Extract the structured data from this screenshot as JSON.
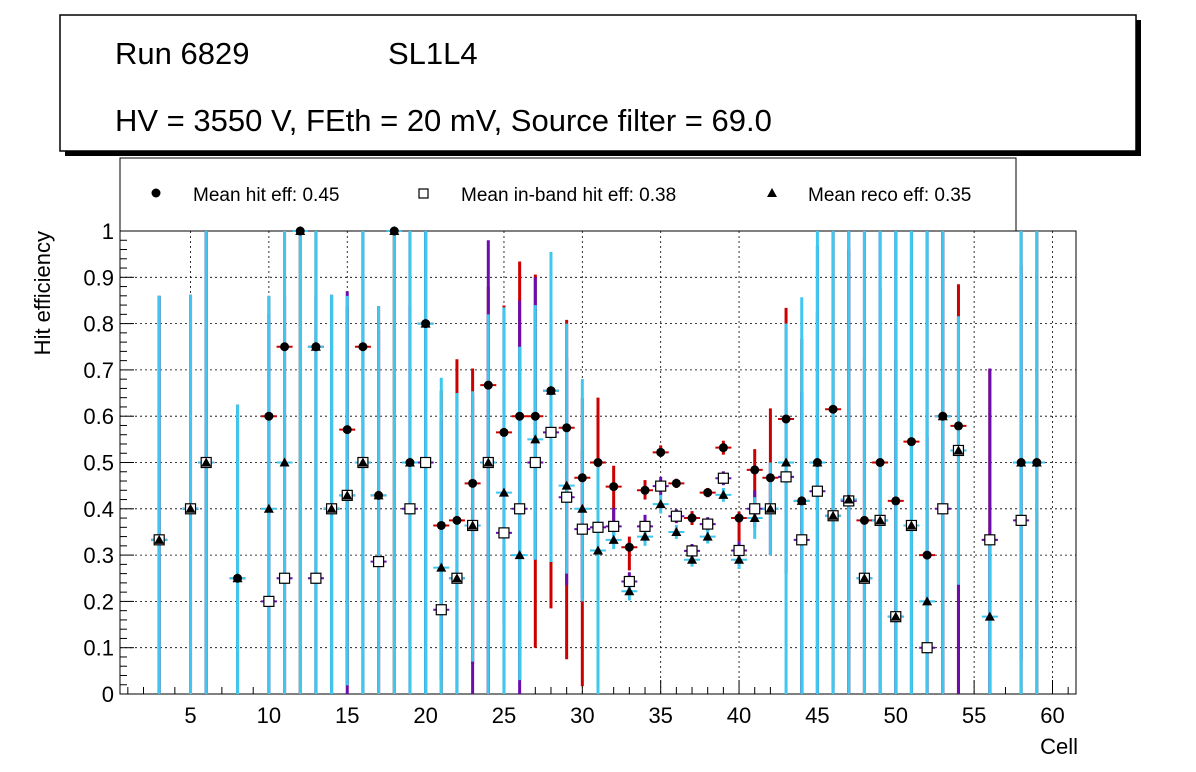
{
  "header": {
    "run": "Run 6829",
    "layer": "SL1L4",
    "settings": "HV = 3550 V, FEth = 20 mV, Source filter = 69.0"
  },
  "legend": {
    "hit": "Mean hit  eff: 0.45",
    "inband": "Mean in-band hit eff: 0.38",
    "reco": "Mean reco eff: 0.35"
  },
  "chart_data": {
    "type": "scatter",
    "xlabel": "Cell",
    "ylabel": "Hit efficiency",
    "xlim": [
      0.5,
      61.5
    ],
    "ylim": [
      0,
      1
    ],
    "xticks": [
      5,
      10,
      15,
      20,
      25,
      30,
      35,
      40,
      45,
      50,
      55,
      60
    ],
    "yticks": [
      0,
      0.1,
      0.2,
      0.3,
      0.4,
      0.5,
      0.6,
      0.7,
      0.8,
      0.9,
      1
    ],
    "grid": true,
    "colors": {
      "hit_err": "#cc0000",
      "inband_err": "#6a0dad",
      "reco_err": "#3ec8f0",
      "marker": "#000000"
    },
    "x": [
      3,
      5,
      6,
      8,
      10,
      11,
      12,
      13,
      14,
      15,
      16,
      17,
      18,
      19,
      20,
      21,
      22,
      23,
      24,
      25,
      26,
      27,
      28,
      29,
      30,
      31,
      32,
      33,
      34,
      35,
      36,
      37,
      38,
      39,
      40,
      41,
      42,
      43,
      44,
      45,
      46,
      47,
      48,
      49,
      50,
      51,
      52,
      53,
      54,
      56,
      58,
      59
    ],
    "series": [
      {
        "name": "Mean hit eff",
        "values": [
          0.333,
          0.4,
          0.5,
          0.25,
          0.6,
          0.75,
          1.0,
          0.75,
          0.4,
          0.571,
          0.75,
          0.429,
          1.0,
          0.5,
          0.8,
          0.364,
          0.375,
          0.455,
          0.667,
          0.565,
          0.6,
          0.6,
          0.655,
          0.575,
          0.467,
          0.5,
          0.448,
          0.317,
          0.44,
          0.522,
          0.455,
          0.38,
          0.435,
          0.532,
          0.38,
          0.484,
          0.467,
          0.594,
          0.417,
          0.5,
          0.615,
          0.42,
          0.375,
          0.5,
          0.417,
          0.545,
          0.3,
          0.6,
          0.579,
          0.333,
          0.5,
          0.5
        ],
        "err_hi": [
          0.527,
          0.462,
          0.5,
          0.375,
          0.26,
          0.25,
          0.0,
          0.25,
          0.462,
          0.266,
          0.25,
          0.409,
          0.0,
          0.5,
          0.2,
          0.291,
          0.348,
          0.248,
          0.213,
          0.274,
          0.334,
          0.306,
          0.152,
          0.233,
          0.172,
          0.14,
          0.045,
          0.023,
          0.022,
          0.015,
          0.01,
          0.015,
          0.01,
          0.015,
          0.014,
          0.045,
          0.15,
          0.24,
          0.35,
          0.325,
          0.385,
          0.54,
          0.35,
          0.375,
          0.305,
          0.388,
          0.255,
          0.4,
          0.306,
          0.367,
          0.5,
          0.5
        ],
        "err_lo": [
          0.333,
          0.4,
          0.5,
          0.25,
          0.6,
          0.75,
          1.0,
          0.75,
          0.4,
          0.55,
          0.75,
          0.429,
          1.0,
          0.5,
          0.8,
          0.364,
          0.375,
          0.39,
          0.667,
          0.565,
          0.57,
          0.5,
          0.47,
          0.5,
          0.45,
          0.5,
          0.1,
          0.05,
          0.02,
          0.01,
          0.01,
          0.015,
          0.01,
          0.015,
          0.05,
          0.1,
          0.06,
          0.33,
          0.417,
          0.5,
          0.6,
          0.42,
          0.375,
          0.5,
          0.417,
          0.545,
          0.3,
          0.6,
          0.579,
          0.333,
          0.5,
          0.5
        ]
      },
      {
        "name": "Mean in-band hit eff",
        "values": [
          0.333,
          0.4,
          0.5,
          null,
          0.2,
          0.25,
          null,
          0.25,
          0.4,
          0.429,
          0.5,
          0.286,
          null,
          0.4,
          0.5,
          0.182,
          0.25,
          0.364,
          0.5,
          0.348,
          0.4,
          0.5,
          0.565,
          0.425,
          0.356,
          0.36,
          0.362,
          0.243,
          0.362,
          0.449,
          0.384,
          0.309,
          0.367,
          0.466,
          0.31,
          0.4,
          0.4,
          0.469,
          0.333,
          0.438,
          0.385,
          0.417,
          0.25,
          0.375,
          0.167,
          0.364,
          0.1,
          0.4,
          0.526,
          0.333,
          0.375,
          null
        ],
        "err_hi": [
          0.527,
          0.462,
          0.5,
          null,
          0.62,
          0.61,
          null,
          0.61,
          0.462,
          0.441,
          0.5,
          0.5,
          null,
          0.44,
          0.5,
          0.41,
          0.4,
          0.28,
          0.48,
          0.48,
          0.45,
          0.4,
          0.25,
          0.3,
          0.17,
          0.1,
          0.04,
          0.02,
          0.025,
          0.02,
          0.015,
          0.015,
          0.015,
          0.015,
          0.02,
          0.04,
          0.1,
          0.15,
          0.32,
          0.53,
          0.615,
          0.583,
          0.75,
          0.625,
          0.833,
          0.636,
          0.9,
          0.6,
          0.29,
          0.37,
          0.55,
          null
        ],
        "err_lo": [
          0.333,
          0.4,
          0.5,
          null,
          0.2,
          0.25,
          null,
          0.25,
          0.4,
          0.429,
          0.5,
          0.286,
          null,
          0.29,
          0.5,
          0.15,
          0.25,
          0.364,
          0.5,
          0.2,
          0.4,
          0.21,
          0.28,
          0.19,
          0.15,
          0.1,
          0.02,
          0.02,
          0.025,
          0.02,
          0.015,
          0.015,
          0.015,
          0.015,
          0.02,
          0.04,
          0.1,
          0.21,
          0.333,
          0.438,
          0.385,
          0.417,
          0.25,
          0.375,
          0.167,
          0.364,
          0.1,
          0.4,
          0.526,
          0.333,
          0.3,
          null
        ]
      },
      {
        "name": "Mean reco eff",
        "values": [
          0.333,
          0.4,
          0.5,
          0.25,
          0.4,
          0.5,
          1.0,
          0.75,
          0.4,
          0.429,
          0.5,
          0.429,
          1.0,
          0.5,
          0.8,
          0.273,
          0.25,
          0.364,
          0.5,
          0.435,
          0.3,
          0.55,
          0.655,
          0.45,
          0.4,
          0.31,
          0.333,
          0.222,
          0.34,
          0.41,
          0.35,
          0.29,
          0.34,
          0.43,
          0.29,
          0.38,
          0.4,
          0.5,
          0.417,
          0.5,
          0.385,
          0.42,
          0.25,
          0.375,
          0.167,
          0.364,
          0.2,
          0.6,
          0.526,
          0.167,
          0.5,
          0.5
        ],
        "err_hi": [
          0.527,
          0.462,
          0.5,
          0.375,
          0.46,
          0.5,
          0.0,
          0.25,
          0.462,
          0.431,
          0.5,
          0.409,
          0.0,
          0.5,
          0.2,
          0.41,
          0.4,
          0.29,
          0.32,
          0.4,
          0.45,
          0.29,
          0.3,
          0.35,
          0.28,
          0.18,
          0.04,
          0.02,
          0.02,
          0.02,
          0.015,
          0.015,
          0.015,
          0.015,
          0.02,
          0.045,
          0.1,
          0.3,
          0.44,
          0.53,
          0.615,
          0.58,
          0.75,
          0.625,
          0.833,
          0.636,
          0.8,
          0.4,
          0.29,
          0.167,
          0.5,
          0.5
        ],
        "err_lo": [
          0.333,
          0.4,
          0.5,
          0.25,
          0.4,
          0.5,
          1.0,
          0.75,
          0.4,
          0.41,
          0.5,
          0.429,
          1.0,
          0.5,
          0.8,
          0.273,
          0.25,
          0.294,
          0.5,
          0.435,
          0.27,
          0.26,
          0.37,
          0.19,
          0.2,
          0.31,
          0.02,
          0.02,
          0.02,
          0.02,
          0.015,
          0.015,
          0.015,
          0.015,
          0.02,
          0.045,
          0.1,
          0.5,
          0.417,
          0.5,
          0.385,
          0.42,
          0.25,
          0.375,
          0.167,
          0.364,
          0.2,
          0.6,
          0.29,
          0.167,
          0.5,
          0.5
        ]
      }
    ]
  }
}
